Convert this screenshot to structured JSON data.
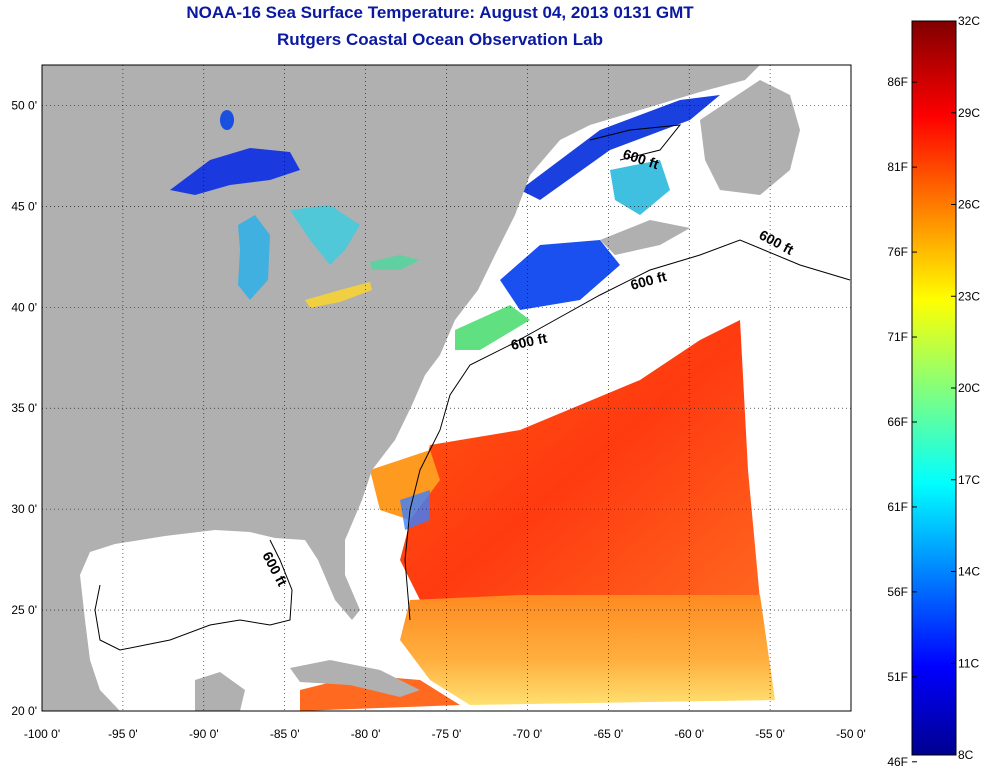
{
  "title": "NOAA-16 Sea Surface Temperature:  August 04, 2013 0131 GMT",
  "subtitle": "Rutgers Coastal Ocean Observation Lab",
  "map": {
    "lon_range": [
      -100,
      -50
    ],
    "lat_range": [
      20,
      52
    ],
    "grid": "dotted",
    "lon_ticks": [
      "-100 0'",
      "-95 0'",
      "-90 0'",
      "-85 0'",
      "-80 0'",
      "-75 0'",
      "-70 0'",
      "-65 0'",
      "-60 0'",
      "-55 0'",
      "-50 0'"
    ],
    "lat_ticks": [
      "20 0'",
      "25 0'",
      "30 0'",
      "35 0'",
      "40 0'",
      "45 0'",
      "50 0'"
    ],
    "contour_labels": [
      "600 ft",
      "600 ft",
      "600 ft",
      "600 ft",
      "600 ft"
    ],
    "colors": {
      "land": "#b0b0b0",
      "cloud": "#ffffff"
    }
  },
  "colorbar": {
    "min_c": 8,
    "max_c": 32,
    "celsius_labels": [
      "32C",
      "29C",
      "26C",
      "23C",
      "20C",
      "17C",
      "14C",
      "11C",
      "8C"
    ],
    "fahrenheit_labels": [
      "86F",
      "81F",
      "76F",
      "71F",
      "66F",
      "61F",
      "56F",
      "51F",
      "46F"
    ]
  }
}
